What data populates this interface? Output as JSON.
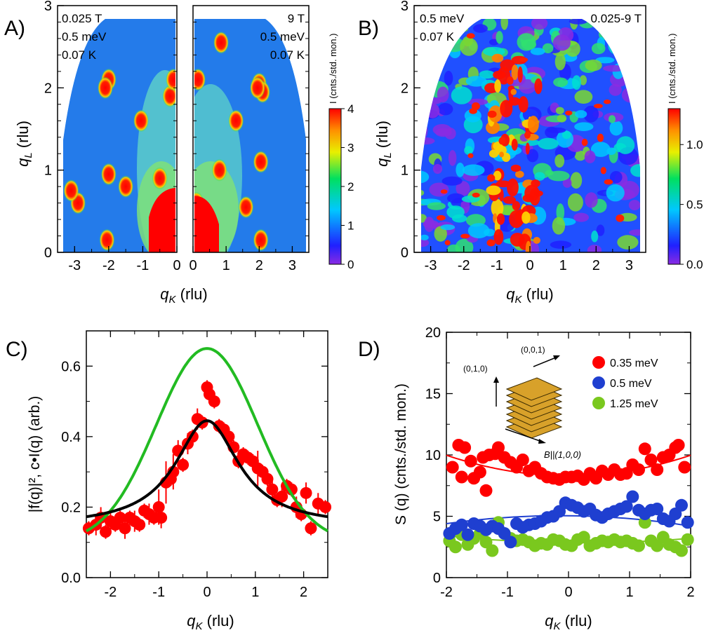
{
  "panels": [
    {
      "id": "A",
      "label": "A)"
    },
    {
      "id": "B",
      "label": "B)"
    },
    {
      "id": "C",
      "label": "C)"
    },
    {
      "id": "D",
      "label": "D)"
    }
  ],
  "colors": {
    "red": "#ff0000",
    "blue": "#1f3fd0",
    "green": "#7ac81e",
    "black": "#000000",
    "fit_green": "#22bb22"
  },
  "chart_data": [
    {
      "id": "A_left",
      "type": "heatmap",
      "annotations": [
        "0.025 T",
        "0.5 meV",
        "0.07 K"
      ],
      "xlabel_var": "q",
      "xlabel_sub": "K",
      "xlabel_unit": " (rlu)",
      "ylabel_var": "q",
      "ylabel_sub": "L",
      "ylabel_unit": " (rlu)",
      "xlim": [
        -3.5,
        0
      ],
      "ylim": [
        0,
        3
      ],
      "xticks": [
        "-3",
        "-2",
        "-1",
        "0"
      ],
      "yticks": [
        "0",
        "1",
        "2",
        "3"
      ],
      "hotspots": [
        [
          -2.0,
          2.1
        ],
        [
          -2.1,
          2.0
        ],
        [
          -1.05,
          1.6
        ],
        [
          -2.9,
          0.6
        ],
        [
          -2.0,
          0.95
        ],
        [
          -1.5,
          0.8
        ],
        [
          -2.05,
          0.15
        ],
        [
          -3.1,
          0.75
        ],
        [
          -0.2,
          1.9
        ],
        [
          -0.1,
          2.1
        ],
        [
          -0.5,
          0.9
        ]
      ]
    },
    {
      "id": "A_right",
      "type": "heatmap",
      "annotations": [
        "9 T",
        "0.5 meV",
        "0.07 K"
      ],
      "xlim": [
        0,
        3.5
      ],
      "ylim": [
        0,
        3
      ],
      "xticks": [
        "0",
        "1",
        "2",
        "3"
      ],
      "colorbar": {
        "label": "I (cnts./std. mon.)",
        "range": [
          0,
          4
        ],
        "ticks": [
          "0",
          "1",
          "2",
          "3",
          "4"
        ]
      },
      "hotspots": [
        [
          0.85,
          2.55
        ],
        [
          0.15,
          2.1
        ],
        [
          2.0,
          2.05
        ],
        [
          2.1,
          1.95
        ],
        [
          1.3,
          1.6
        ],
        [
          2.05,
          1.1
        ],
        [
          0.1,
          0.6
        ],
        [
          0.8,
          1.0
        ],
        [
          1.6,
          0.55
        ],
        [
          2.05,
          0.15
        ],
        [
          1.95,
          2.0
        ]
      ]
    },
    {
      "id": "B",
      "type": "heatmap",
      "annotations": [
        "0.5 meV",
        "0.07 K",
        "0.025-9 T"
      ],
      "xlim": [
        -3.5,
        3.5
      ],
      "ylim": [
        0,
        3
      ],
      "xticks": [
        "-3",
        "-2",
        "-1",
        "0",
        "1",
        "2",
        "3"
      ],
      "yticks": [
        "0",
        "1",
        "2",
        "3"
      ],
      "colorbar": {
        "label": "I (cnts./std. mon.)",
        "range": [
          0,
          1.3
        ],
        "ticks": [
          "0.0",
          "0.5",
          "1.0"
        ]
      }
    },
    {
      "id": "C",
      "type": "scatter",
      "xlabel_var": "q",
      "xlabel_sub": "K",
      "xlabel_unit": " (rlu)",
      "ylabel": "|f(q)|², c•I(q) (arb.)",
      "xlim": [
        -2.5,
        2.5
      ],
      "ylim": [
        0,
        0.7
      ],
      "xticks": [
        "-2",
        "-1",
        "0",
        "1",
        "2"
      ],
      "yticks": [
        "0.0",
        "0.2",
        "0.4",
        "0.6"
      ],
      "series": [
        {
          "kind": "points",
          "color": "#ff0000",
          "x": [
            -2.45,
            -2.3,
            -2.2,
            -2.1,
            -2.0,
            -1.9,
            -1.8,
            -1.7,
            -1.6,
            -1.5,
            -1.4,
            -1.3,
            -1.2,
            -1.1,
            -1.0,
            -0.95,
            -0.85,
            -0.75,
            -0.7,
            -0.6,
            -0.5,
            -0.4,
            -0.3,
            -0.2,
            -0.1,
            0.0,
            0.05,
            0.15,
            0.25,
            0.35,
            0.45,
            0.55,
            0.65,
            0.75,
            0.85,
            0.95,
            1.05,
            1.15,
            1.25,
            1.35,
            1.45,
            1.55,
            1.65,
            1.75,
            1.85,
            1.95,
            2.05,
            2.15,
            2.3,
            2.45
          ],
          "y": [
            0.14,
            0.15,
            0.17,
            0.13,
            0.16,
            0.15,
            0.17,
            0.14,
            0.17,
            0.16,
            0.15,
            0.19,
            0.18,
            0.17,
            0.2,
            0.17,
            0.27,
            0.28,
            0.3,
            0.36,
            0.32,
            0.38,
            0.4,
            0.45,
            0.44,
            0.54,
            0.52,
            0.5,
            0.43,
            0.42,
            0.4,
            0.37,
            0.33,
            0.35,
            0.34,
            0.33,
            0.31,
            0.3,
            0.28,
            0.25,
            0.22,
            0.23,
            0.26,
            0.25,
            0.2,
            0.18,
            0.24,
            0.14,
            0.21,
            0.2
          ],
          "err": [
            0.02,
            0.03,
            0.03,
            0.02,
            0.03,
            0.02,
            0.02,
            0.03,
            0.02,
            0.03,
            0.02,
            0.02,
            0.03,
            0.02,
            0.05,
            0.03,
            0.06,
            0.02,
            0.05,
            0.03,
            0.02,
            0.03,
            0.02,
            0.03,
            0.02,
            0.02,
            0.02,
            0.02,
            0.02,
            0.02,
            0.02,
            0.02,
            0.02,
            0.02,
            0.02,
            0.02,
            0.05,
            0.02,
            0.02,
            0.03,
            0.02,
            0.03,
            0.02,
            0.02,
            0.03,
            0.02,
            0.03,
            0.02,
            0.03,
            0.02
          ]
        },
        {
          "kind": "curve",
          "color": "#000000",
          "func": "lorentz",
          "a": 0.3,
          "b": 0.145,
          "w": 0.8
        },
        {
          "kind": "curve",
          "color": "#22bb22",
          "func": "gauss",
          "a": 0.55,
          "b": 0.1,
          "s": 1.05
        }
      ]
    },
    {
      "id": "D",
      "type": "scatter",
      "xlabel_var": "q",
      "xlabel_sub": "K",
      "xlabel_unit": " (rlu)",
      "ylabel": "S (q) (cnts./std. mon.)",
      "xlim": [
        -2,
        2
      ],
      "ylim": [
        0,
        20
      ],
      "xticks": [
        "-2",
        "-1",
        "0",
        "1",
        "2"
      ],
      "yticks": [
        "0",
        "5",
        "10",
        "15",
        "20"
      ],
      "legend": {
        "position": "top-right",
        "entries": [
          {
            "name": "0.35 meV",
            "color": "#ff0000"
          },
          {
            "name": "0.5 meV",
            "color": "#1f3fd0"
          },
          {
            "name": "1.25 meV",
            "color": "#7ac81e"
          }
        ]
      },
      "inset": {
        "labels": [
          "(0,0,1)",
          "(0,1,0)",
          "B||(1,0,0)"
        ]
      },
      "series": [
        {
          "name": "0.35 meV",
          "color": "#ff0000",
          "x": [
            -1.9,
            -1.8,
            -1.75,
            -1.7,
            -1.6,
            -1.55,
            -1.45,
            -1.4,
            -1.35,
            -1.3,
            -1.2,
            -1.15,
            -1.05,
            -0.95,
            -0.85,
            -0.75,
            -0.65,
            -0.55,
            -0.45,
            -0.35,
            -0.25,
            -0.15,
            -0.05,
            0.05,
            0.15,
            0.25,
            0.35,
            0.45,
            0.55,
            0.65,
            0.75,
            0.85,
            0.95,
            1.05,
            1.15,
            1.25,
            1.35,
            1.45,
            1.55,
            1.65,
            1.75,
            1.8,
            1.9
          ],
          "y": [
            9.0,
            10.8,
            8.2,
            10.6,
            9.5,
            8.1,
            8.6,
            9.8,
            7.1,
            10.0,
            10.1,
            10.6,
            9.8,
            9.4,
            9.0,
            9.6,
            8.7,
            9.0,
            8.5,
            8.2,
            8.1,
            8.0,
            8.2,
            8.2,
            8.3,
            8.0,
            8.5,
            8.1,
            8.7,
            8.4,
            8.8,
            8.4,
            8.5,
            9.2,
            8.8,
            10.5,
            9.6,
            8.8,
            9.8,
            10.0,
            10.6,
            10.8,
            9.0
          ]
        },
        {
          "name": "0.5 meV",
          "color": "#1f3fd0",
          "x": [
            -1.95,
            -1.85,
            -1.75,
            -1.65,
            -1.55,
            -1.45,
            -1.35,
            -1.25,
            -1.15,
            -1.05,
            -0.95,
            -0.85,
            -0.75,
            -0.65,
            -0.55,
            -0.45,
            -0.35,
            -0.25,
            -0.15,
            -0.05,
            0.05,
            0.15,
            0.25,
            0.35,
            0.45,
            0.55,
            0.65,
            0.75,
            0.85,
            0.95,
            1.05,
            1.15,
            1.25,
            1.35,
            1.45,
            1.55,
            1.65,
            1.75,
            1.85,
            1.95
          ],
          "y": [
            3.6,
            4.0,
            4.3,
            3.5,
            4.4,
            4.2,
            3.9,
            4.2,
            4.0,
            3.6,
            2.9,
            4.4,
            4.1,
            4.3,
            4.4,
            4.6,
            4.9,
            5.0,
            5.4,
            6.1,
            5.9,
            5.7,
            5.4,
            5.6,
            5.1,
            4.9,
            5.2,
            5.4,
            5.6,
            5.8,
            6.6,
            5.5,
            5.2,
            5.5,
            5.6,
            4.8,
            4.6,
            5.2,
            5.9,
            4.5
          ]
        },
        {
          "name": "1.25 meV",
          "color": "#7ac81e",
          "x": [
            -1.95,
            -1.85,
            -1.75,
            -1.65,
            -1.55,
            -1.45,
            -1.35,
            -1.25,
            -1.15,
            -1.05,
            -0.95,
            -0.85,
            -0.75,
            -0.65,
            -0.55,
            -0.45,
            -0.35,
            -0.25,
            -0.15,
            -0.05,
            0.05,
            0.15,
            0.25,
            0.35,
            0.45,
            0.55,
            0.65,
            0.75,
            0.85,
            0.95,
            1.05,
            1.15,
            1.25,
            1.35,
            1.45,
            1.55,
            1.65,
            1.75,
            1.85,
            1.95
          ],
          "y": [
            3.0,
            2.5,
            3.5,
            2.7,
            3.2,
            3.6,
            2.9,
            2.2,
            4.5,
            3.6,
            3.2,
            3.0,
            3.1,
            2.9,
            2.6,
            2.8,
            2.7,
            3.1,
            3.0,
            2.7,
            2.6,
            3.1,
            3.3,
            2.6,
            2.8,
            3.0,
            2.9,
            3.1,
            2.9,
            3.0,
            2.8,
            2.6,
            4.5,
            3.0,
            2.6,
            3.3,
            2.7,
            2.5,
            2.2,
            3.1
          ]
        },
        {
          "kind": "fit",
          "color": "#ff0000",
          "coef": [
            8.3,
            1.4
          ]
        },
        {
          "kind": "fit",
          "color": "#1f3fd0",
          "line": [
            [
              -2,
              4.4
            ],
            [
              0,
              5.2
            ],
            [
              2,
              4.2
            ]
          ]
        },
        {
          "kind": "fit",
          "color": "#7ac81e",
          "line": [
            [
              -2,
              3.4
            ],
            [
              0,
              2.8
            ],
            [
              2,
              3.2
            ]
          ]
        }
      ]
    }
  ]
}
